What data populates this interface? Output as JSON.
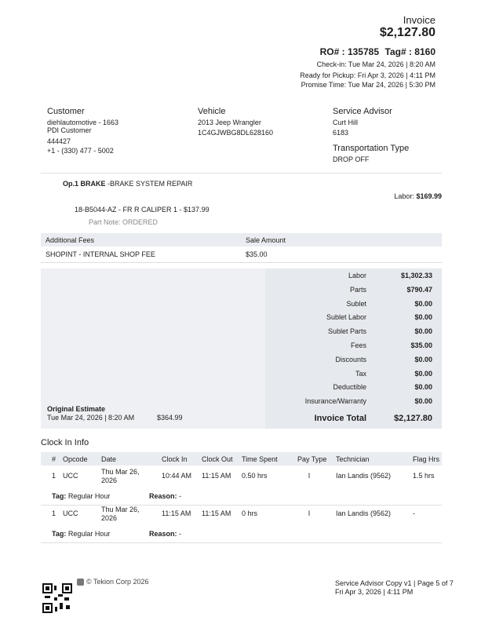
{
  "header": {
    "title": "Invoice",
    "total": "$2,127.80",
    "ro": "RO# : 135785",
    "tag": "Tag# : 8160",
    "check_in": "Check-in: Tue Mar 24, 2026 | 8:20 AM",
    "ready": "Ready for Pickup: Fri Apr 3, 2026 | 4:11 PM",
    "promise": "Promise Time: Tue Mar 24, 2026 | 5:30 PM"
  },
  "customer": {
    "label": "Customer",
    "lines": [
      "diehlautomotive - 1663",
      "PDI Customer",
      "444427",
      "+1 - (330) 477 - 5002"
    ]
  },
  "vehicle": {
    "label": "Vehicle",
    "lines": [
      "2013 Jeep Wrangler",
      "1C4GJWBG8DL628160"
    ]
  },
  "advisor": {
    "label": "Service Advisor",
    "lines": [
      "Curt Hill",
      "6183"
    ]
  },
  "transport": {
    "label": "Transportation Type",
    "value": "DROP OFF"
  },
  "operation": {
    "code": "Op.1 BRAKE",
    "desc": "-BRAKE SYSTEM REPAIR",
    "labor_label": "Labor:",
    "labor": "$169.99",
    "part": "18-B5044-AZ - FR R CALIPER 1 - $137.99",
    "part_note": "Part Note: ORDERED"
  },
  "fees": {
    "headers": [
      "Additional Fees",
      "Sale Amount"
    ],
    "rows": [
      [
        "SHOPINT - INTERNAL SHOP FEE",
        "$35.00"
      ]
    ]
  },
  "totals": {
    "rows": [
      [
        "Labor",
        "$1,302.33"
      ],
      [
        "Parts",
        "$790.47"
      ],
      [
        "Sublet",
        "$0.00"
      ],
      [
        "Sublet Labor",
        "$0.00"
      ],
      [
        "Sublet Parts",
        "$0.00"
      ],
      [
        "Fees",
        "$35.00"
      ],
      [
        "Discounts",
        "$0.00"
      ],
      [
        "Tax",
        "$0.00"
      ],
      [
        "Deductible",
        "$0.00"
      ],
      [
        "Insurance/Warranty",
        "$0.00"
      ]
    ],
    "total_label": "Invoice Total",
    "total": "$2,127.80"
  },
  "estimate": {
    "label": "Original Estimate",
    "date": "Tue Mar 24, 2026 | 8:20 AM",
    "amount": "$364.99"
  },
  "clock": {
    "title": "Clock In Info",
    "headers": [
      "#",
      "Opcode",
      "Date",
      "Clock In",
      "Clock Out",
      "Time Spent",
      "Pay Type",
      "Technician",
      "Flag Hrs"
    ],
    "rows": [
      {
        "cells": [
          "1",
          "UCC",
          "Thu Mar 26, 2026",
          "10:44 AM",
          "11:15 AM",
          "0.50 hrs",
          "I",
          "Ian Landis (9562)",
          "1.5 hrs"
        ],
        "tag_label": "Tag:",
        "tag": "Regular Hour",
        "reason_label": "Reason:",
        "reason": "-"
      },
      {
        "cells": [
          "1",
          "UCC",
          "Thu Mar 26, 2026",
          "11:15 AM",
          "11:15 AM",
          "0 hrs",
          "I",
          "Ian Landis (9562)",
          "-"
        ],
        "tag_label": "Tag:",
        "tag": "Regular Hour",
        "reason_label": "Reason:",
        "reason": "-"
      }
    ]
  },
  "footer": {
    "company": "© Tekion Corp 2026",
    "copy": "Service Advisor Copy v1 | Page 5 of 7",
    "date": "Fri Apr 3, 2026 | 4:11 PM"
  }
}
